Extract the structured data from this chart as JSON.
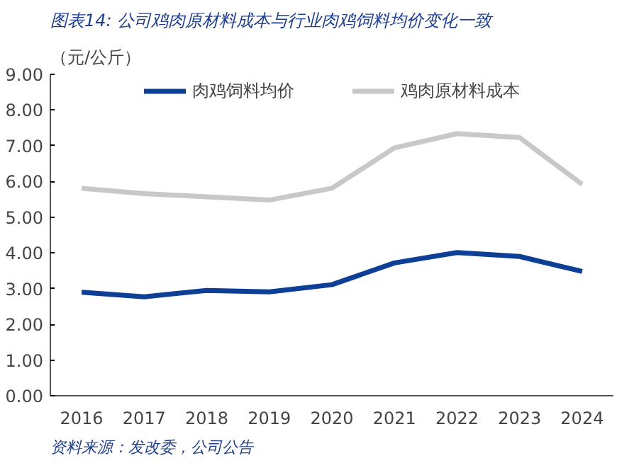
{
  "chart_data": {
    "type": "line",
    "title": "图表14: 公司鸡肉原材料成本与行业肉鸡饲料均价变化一致",
    "ylabel": "（元/公斤）",
    "categories": [
      "2016",
      "2017",
      "2018",
      "2019",
      "2020",
      "2021",
      "2022",
      "2023",
      "2024"
    ],
    "series": [
      {
        "name": "肉鸡饲料均价",
        "color": "#0d3f96",
        "values": [
          2.9,
          2.77,
          2.95,
          2.91,
          3.11,
          3.72,
          4.01,
          3.9,
          3.48
        ]
      },
      {
        "name": "鸡肉原材料成本",
        "color": "#c8c8c8",
        "values": [
          5.81,
          5.66,
          5.57,
          5.48,
          5.81,
          6.94,
          7.34,
          7.23,
          5.92
        ]
      }
    ],
    "ylim": [
      0,
      9
    ],
    "yticks": [
      {
        "value": 0,
        "label": "0.00"
      },
      {
        "value": 1,
        "label": "1.00"
      },
      {
        "value": 2,
        "label": "2.00"
      },
      {
        "value": 3,
        "label": "3.00"
      },
      {
        "value": 4,
        "label": "4.00"
      },
      {
        "value": 5,
        "label": "5.00"
      },
      {
        "value": 6,
        "label": "6.00"
      },
      {
        "value": 7,
        "label": "7.00"
      },
      {
        "value": 8,
        "label": "8.00"
      },
      {
        "value": 9,
        "label": "9.00"
      }
    ],
    "grid": false,
    "legend": "top",
    "marker": "none",
    "line_style": "solid",
    "annotations": [
      "资料来源：发改委，公司公告"
    ]
  }
}
